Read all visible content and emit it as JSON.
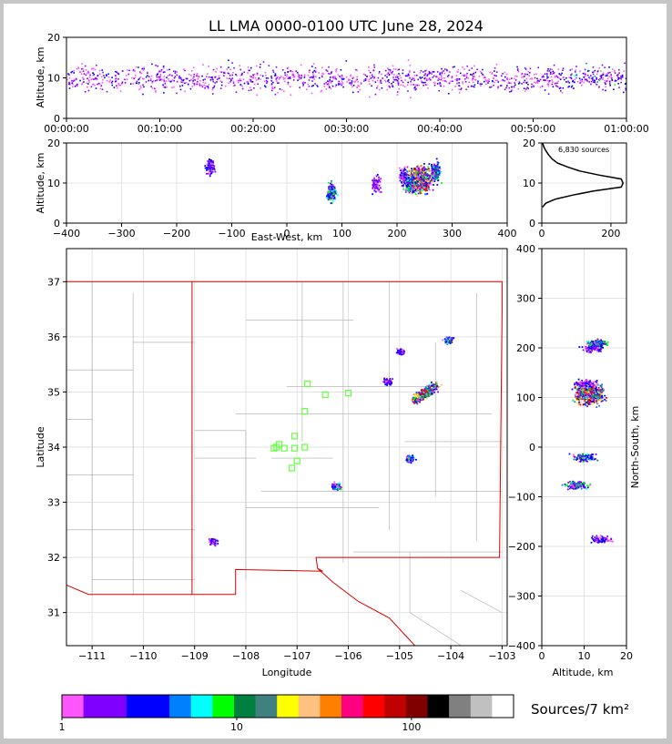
{
  "title": "LL LMA 0000-0100 UTC June 28, 2024",
  "sources_text": "6,830 sources",
  "colorbar_label": "Sources/7 km²",
  "colorbar_ticks": [
    "1",
    "10",
    "100"
  ],
  "colorbar_colors": [
    "#ff55ff",
    "#8000ff",
    "#8000ff",
    "#0000ff",
    "#0000ff",
    "#0080ff",
    "#00ffff",
    "#00ff00",
    "#008040",
    "#408080",
    "#ffff00",
    "#ffc080",
    "#ff8000",
    "#ff0080",
    "#ff0000",
    "#c00000",
    "#800000",
    "#000000",
    "#808080",
    "#c0c0c0",
    "#ffffff"
  ],
  "panels": {
    "time_height": {
      "ylabel": "Altitude, km",
      "yticks": [
        "0",
        "10",
        "20"
      ],
      "xticks": [
        "00:00:00",
        "00:10:00",
        "00:20:00",
        "00:30:00",
        "00:40:00",
        "00:50:00",
        "01:00:00"
      ]
    },
    "ew_height": {
      "ylabel": "Altitude, km",
      "xlabel": "East-West, km",
      "yticks": [
        "0",
        "10",
        "20"
      ],
      "xticks": [
        "−400",
        "−300",
        "−200",
        "−100",
        "0",
        "100",
        "200",
        "300",
        "400"
      ]
    },
    "histogram": {
      "yticks": [
        "0",
        "10",
        "20"
      ],
      "xticks": [
        "0",
        "200"
      ]
    },
    "map": {
      "xlabel": "Longitude",
      "ylabel": "Latitude",
      "xticks": [
        "−111",
        "−110",
        "−109",
        "−108",
        "−107",
        "−106",
        "−105",
        "−104",
        "−103"
      ],
      "yticks": [
        "31",
        "32",
        "33",
        "34",
        "35",
        "36",
        "37"
      ]
    },
    "ns_height": {
      "xlabel": "Altitude, km",
      "ylabel": "North-South, km",
      "xticks": [
        "0",
        "10",
        "20"
      ],
      "yticks": [
        "−400",
        "−300",
        "−200",
        "−100",
        "0",
        "100",
        "200",
        "300",
        "400"
      ]
    }
  },
  "chart_data": {
    "type": "heatmap",
    "title": "LL LMA 0000-0100 UTC June 28, 2024",
    "source_count": 6830,
    "time_range": [
      "00:00:00",
      "01:00:00"
    ],
    "altitude_range_km": [
      0,
      20
    ],
    "ew_range_km": [
      -400,
      400
    ],
    "ns_range_km": [
      -400,
      400
    ],
    "lon_range": [
      -111.5,
      -102.9
    ],
    "lat_range": [
      30.4,
      37.6
    ],
    "station_markers": [
      {
        "lon": -106.8,
        "lat": 35.15
      },
      {
        "lon": -106.45,
        "lat": 34.95
      },
      {
        "lon": -106.0,
        "lat": 34.98
      },
      {
        "lon": -106.85,
        "lat": 34.65
      },
      {
        "lon": -107.05,
        "lat": 34.2
      },
      {
        "lon": -107.35,
        "lat": 34.05
      },
      {
        "lon": -107.45,
        "lat": 33.98
      },
      {
        "lon": -107.25,
        "lat": 33.98
      },
      {
        "lon": -107.05,
        "lat": 33.98
      },
      {
        "lon": -106.85,
        "lat": 34.0
      },
      {
        "lon": -107.0,
        "lat": 33.75
      },
      {
        "lon": -107.1,
        "lat": 33.62
      },
      {
        "lon": -107.4,
        "lat": 34.0
      }
    ],
    "storm_clusters": [
      {
        "lon": -104.5,
        "lat": 35.0,
        "ew": 240,
        "ns": 110,
        "alt": 11,
        "intensity": "high"
      },
      {
        "lon": -104.05,
        "lat": 35.95,
        "ew": 270,
        "ns": 210,
        "alt": 13,
        "intensity": "medium"
      },
      {
        "lon": -108.65,
        "lat": 32.3,
        "ew": -140,
        "ns": -185,
        "alt": 14,
        "intensity": "low"
      },
      {
        "lon": -104.8,
        "lat": 33.8,
        "ew": 220,
        "ns": -20,
        "alt": 10,
        "intensity": "medium"
      },
      {
        "lon": -106.25,
        "lat": 33.3,
        "ew": 80,
        "ns": -75,
        "alt": 8,
        "intensity": "medium"
      },
      {
        "lon": -105.0,
        "lat": 35.75,
        "ew": 210,
        "ns": 200,
        "alt": 12,
        "intensity": "low"
      },
      {
        "lon": -105.25,
        "lat": 35.2,
        "ew": 160,
        "ns": 130,
        "alt": 10,
        "intensity": "low"
      }
    ],
    "altitude_histogram": {
      "altitude_km": [
        4,
        5,
        6,
        7,
        8,
        9,
        10,
        11,
        12,
        13,
        14,
        15,
        16,
        17,
        18,
        19,
        20
      ],
      "sources": [
        2,
        12,
        40,
        90,
        150,
        230,
        235,
        230,
        165,
        110,
        75,
        45,
        30,
        20,
        12,
        6,
        2
      ]
    }
  }
}
